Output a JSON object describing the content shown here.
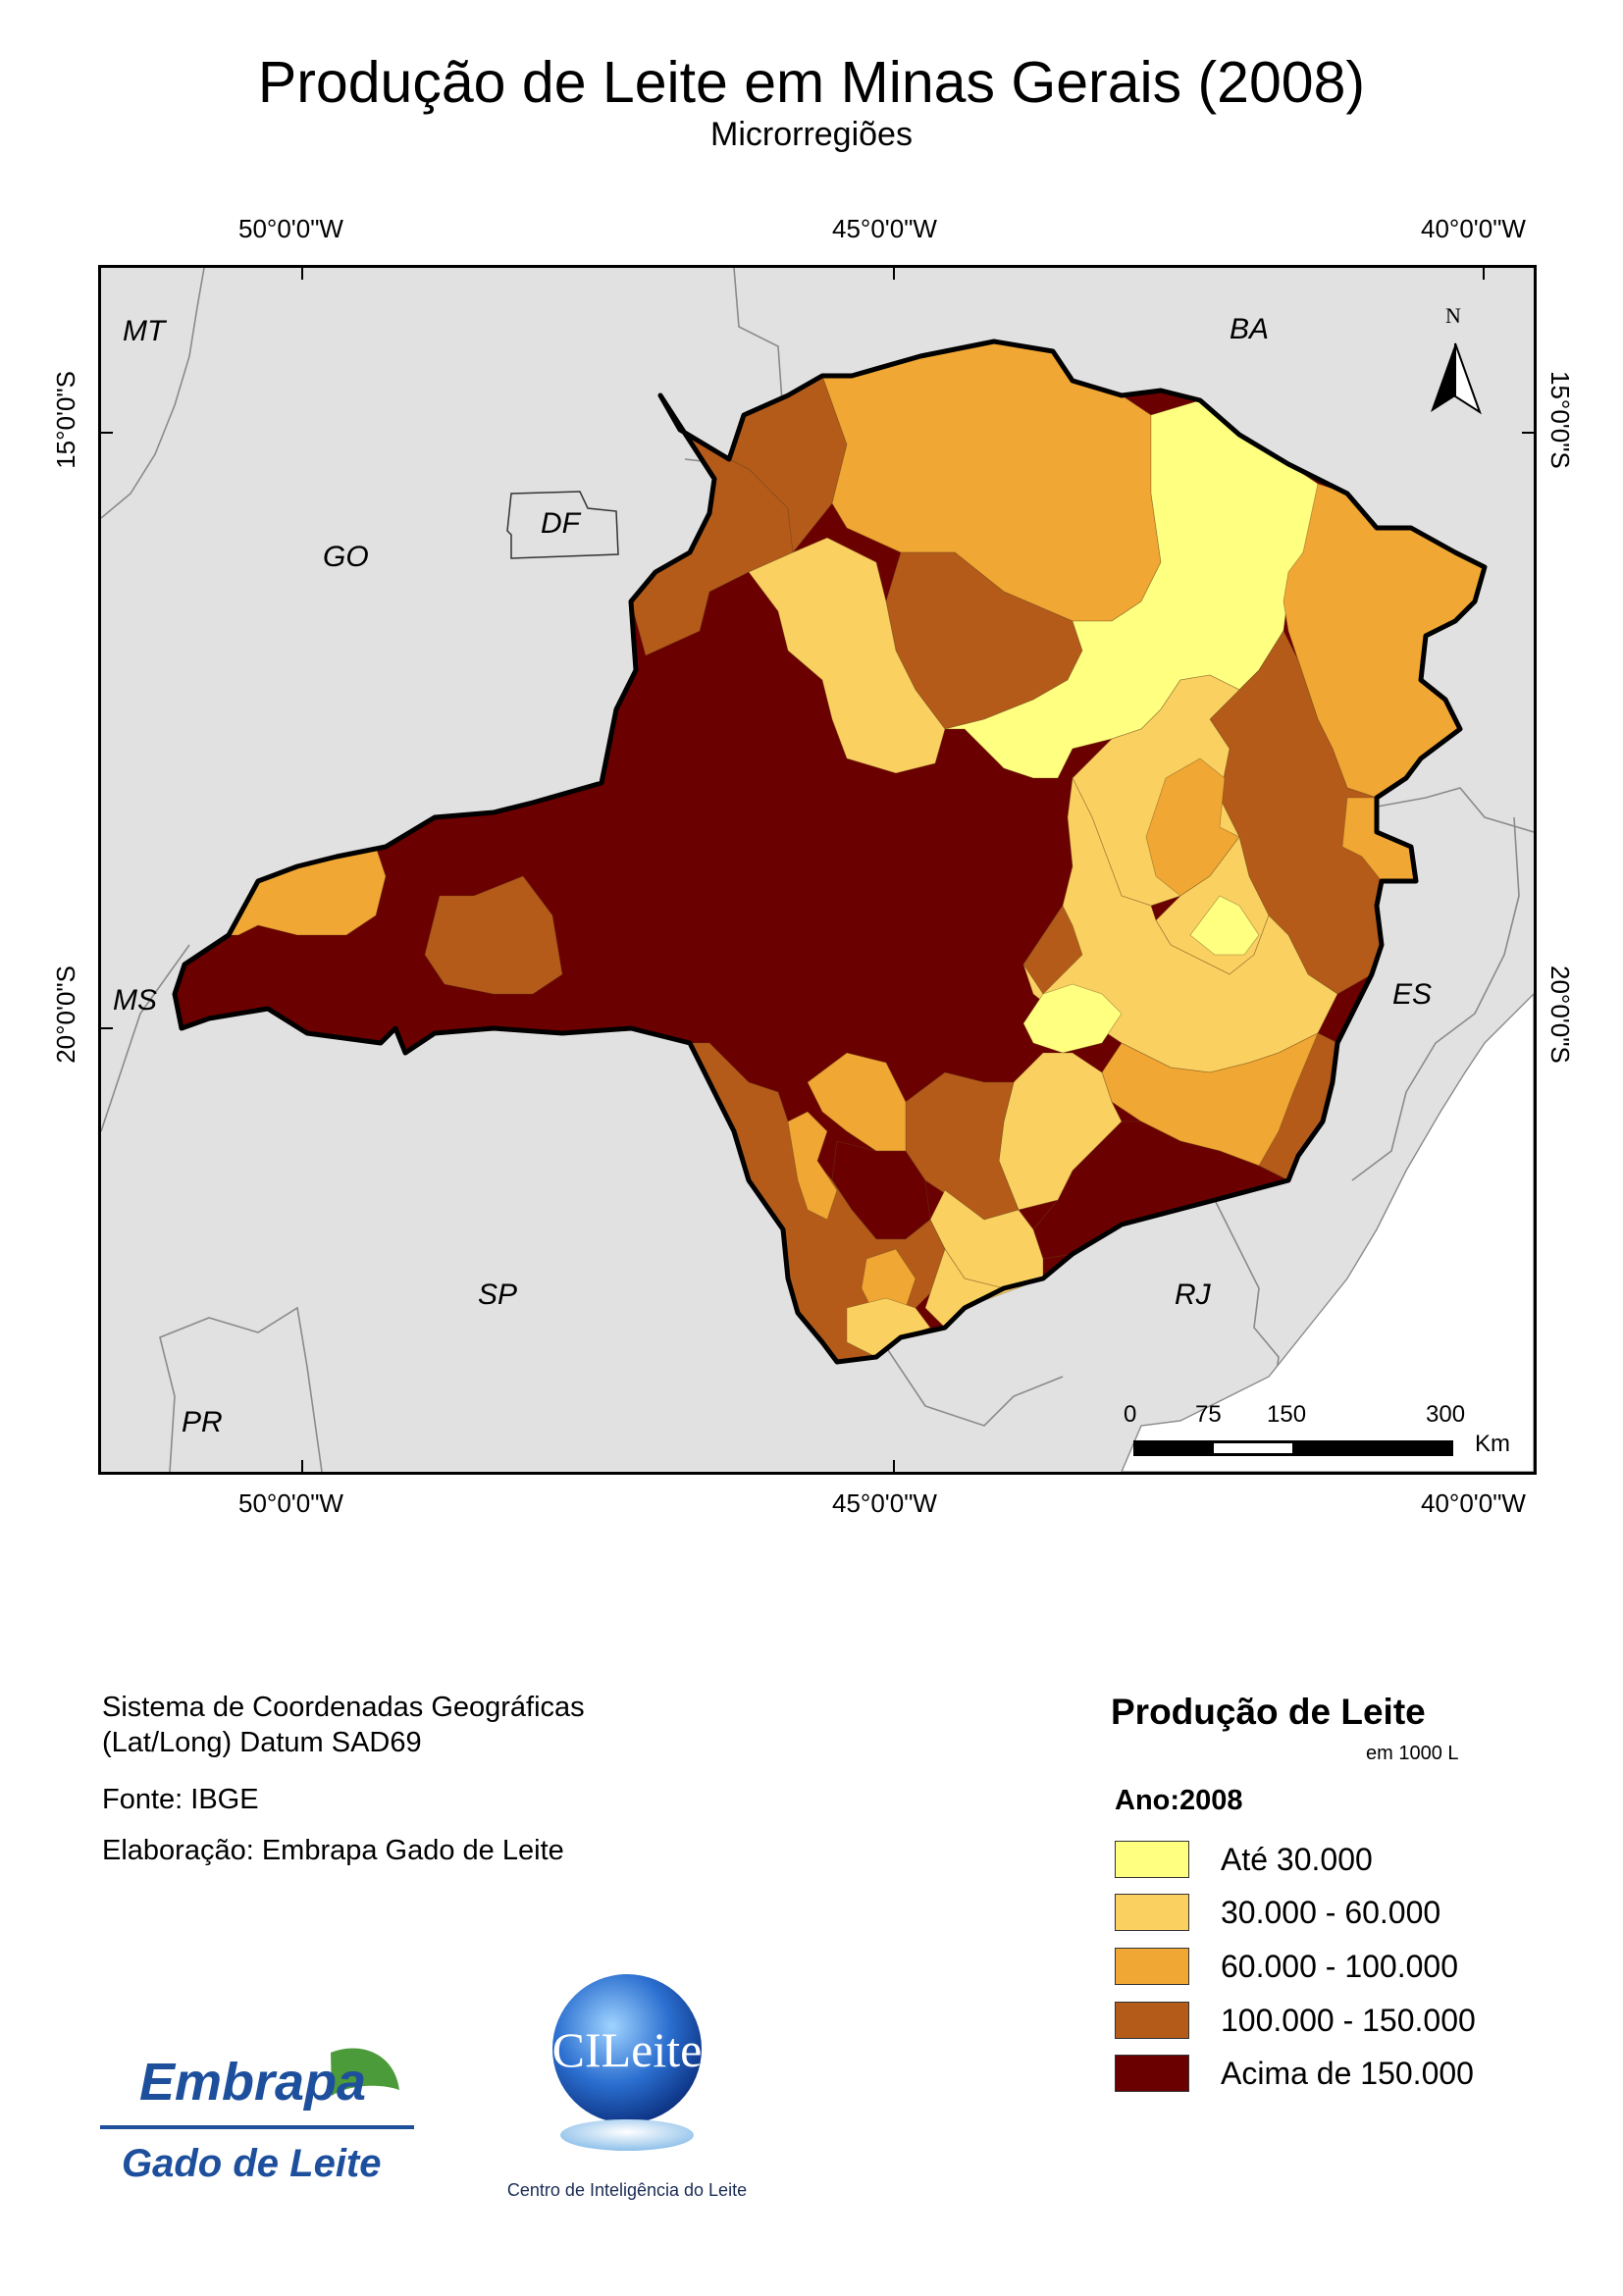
{
  "title": "Produção de Leite em Minas Gerais (2008)",
  "subtitle": "Microrregiões",
  "graticule": {
    "lon_top": [
      "50°0'0\"W",
      "45°0'0\"W",
      "40°0'0\"W"
    ],
    "lon_bottom": [
      "50°0'0\"W",
      "45°0'0\"W",
      "40°0'0\"W"
    ],
    "lat_left": [
      "15°0'0\"S",
      "20°0'0\"S"
    ],
    "lat_right": [
      "15°0'0\"S",
      "20°0'0\"S"
    ]
  },
  "states": {
    "mt": "MT",
    "go": "GO",
    "df": "DF",
    "ba": "BA",
    "ms": "MS",
    "es": "ES",
    "sp": "SP",
    "rj": "RJ",
    "pr": "PR"
  },
  "north_arrow": {
    "label": "N"
  },
  "scale_bar": {
    "ticks": [
      "0",
      "75",
      "150",
      "300"
    ],
    "unit": "Km"
  },
  "info": {
    "crs_line1": "Sistema de Coordenadas Geográficas",
    "crs_line2": "(Lat/Long) Datum SAD69",
    "source": "Fonte: IBGE",
    "author": "Elaboração: Embrapa Gado de Leite"
  },
  "legend": {
    "title": "Produção de Leite",
    "unit": "em 1000 L",
    "year": "Ano:2008",
    "classes": [
      {
        "label": "Até 30.000",
        "color": "#ffff80"
      },
      {
        "label": "30.000 - 60.000",
        "color": "#fad161"
      },
      {
        "label": "60.000 - 100.000",
        "color": "#f0a733"
      },
      {
        "label": "100.000 - 150.000",
        "color": "#b45b1a"
      },
      {
        "label": "Acima de 150.000",
        "color": "#6b0000"
      }
    ]
  },
  "logos": {
    "embrapa_name": "Embrapa",
    "embrapa_sub": "Gado de Leite",
    "cileite_name": "CILeite",
    "cileite_sub": "Centro de Inteligência do Leite"
  },
  "colors": {
    "background_states": "#e1e1e1",
    "border": "#000000",
    "embrapa_blue": "#1d4f9c",
    "embrapa_green": "#4b9b3a"
  }
}
